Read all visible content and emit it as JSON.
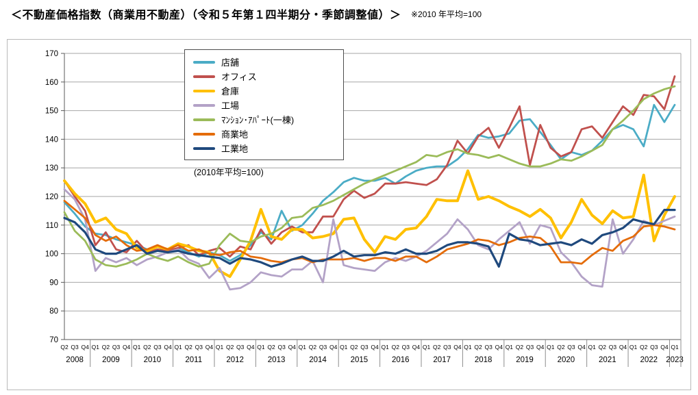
{
  "page": {
    "title": "＜不動産価格指数（商業用不動産）（令和５年第１四半期分・季節調整値）＞",
    "note": "※2010 年平均=100"
  },
  "chart": {
    "legend_note": "(2010年平均=100)"
  },
  "chart_data": {
    "type": "line",
    "title": "不動産価格指数（商業用不動産）",
    "ylabel": "",
    "xlabel": "",
    "ylim": [
      70,
      170
    ],
    "ytick_step": 10,
    "grid": true,
    "legend_position": "top-left-inside",
    "x_axis": {
      "years": [
        {
          "year": "2008",
          "quarters": [
            "Q2",
            "Q3",
            "Q4"
          ]
        },
        {
          "year": "2009",
          "quarters": [
            "Q1",
            "Q2",
            "Q3",
            "Q4"
          ]
        },
        {
          "year": "2010",
          "quarters": [
            "Q1",
            "Q2",
            "Q3",
            "Q4"
          ]
        },
        {
          "year": "2011",
          "quarters": [
            "Q1",
            "Q2",
            "Q3",
            "Q4"
          ]
        },
        {
          "year": "2012",
          "quarters": [
            "Q1",
            "Q2",
            "Q3",
            "Q4"
          ]
        },
        {
          "year": "2013",
          "quarters": [
            "Q1",
            "Q2",
            "Q3",
            "Q4"
          ]
        },
        {
          "year": "2014",
          "quarters": [
            "Q1",
            "Q2",
            "Q3",
            "Q4"
          ]
        },
        {
          "year": "2015",
          "quarters": [
            "Q1",
            "Q2",
            "Q3",
            "Q4"
          ]
        },
        {
          "year": "2016",
          "quarters": [
            "Q1",
            "Q2",
            "Q3",
            "Q4"
          ]
        },
        {
          "year": "2017",
          "quarters": [
            "Q1",
            "Q2",
            "Q3",
            "Q4"
          ]
        },
        {
          "year": "2018",
          "quarters": [
            "Q1",
            "Q2",
            "Q3",
            "Q4"
          ]
        },
        {
          "year": "2019",
          "quarters": [
            "Q1",
            "Q2",
            "Q3",
            "Q4"
          ]
        },
        {
          "year": "2020",
          "quarters": [
            "Q1",
            "Q2",
            "Q3",
            "Q4"
          ]
        },
        {
          "year": "2021",
          "quarters": [
            "Q1",
            "Q2",
            "Q3",
            "Q4"
          ]
        },
        {
          "year": "2022",
          "quarters": [
            "Q1",
            "Q2",
            "Q3",
            "Q4"
          ]
        },
        {
          "year": "2023",
          "quarters": [
            "Q1"
          ]
        }
      ]
    },
    "series": [
      {
        "name": "店舗",
        "color": "#4BACC6",
        "values": [
          118,
          114,
          109.5,
          107,
          106.5,
          105,
          104,
          103,
          101.5,
          102.5,
          101,
          102,
          100.5,
          99,
          100.5,
          99.5,
          97.5,
          99.5,
          103,
          107.5,
          105,
          115,
          108,
          110,
          114,
          118.5,
          121.5,
          125,
          126.5,
          125.5,
          125.5,
          126.5,
          124.5,
          127,
          129,
          130,
          130.5,
          130.5,
          133,
          136.5,
          141.5,
          140.5,
          141,
          142,
          146.5,
          147,
          142.5,
          138,
          133,
          135.5,
          134.5,
          136,
          139.5,
          143.5,
          145,
          143.5,
          137.5,
          152,
          146,
          152
        ]
      },
      {
        "name": "オフィス",
        "color": "#C0504D",
        "values": [
          125.5,
          120,
          115,
          103,
          107.5,
          101.5,
          100.5,
          104.5,
          100.5,
          101.5,
          101,
          102,
          103,
          99.5,
          101,
          102,
          99,
          102.5,
          101.5,
          108.5,
          103.5,
          107.5,
          109.5,
          107.5,
          107.5,
          113,
          113,
          119,
          122,
          119.5,
          121,
          124.5,
          124.5,
          125,
          124.5,
          124,
          126,
          131,
          139.5,
          135,
          141,
          144,
          137,
          144,
          151.5,
          131,
          145,
          137,
          134,
          135.5,
          143.5,
          144.5,
          140.5,
          146,
          151.5,
          148.5,
          155.5,
          155,
          150.5,
          162
        ]
      },
      {
        "name": "倉庫",
        "color": "#FFC000",
        "values": [
          125.5,
          121,
          117.5,
          111,
          112.5,
          108.5,
          107,
          102,
          101,
          102.5,
          101.5,
          103.5,
          102.5,
          101,
          100.5,
          94,
          92,
          98,
          104.5,
          115.5,
          106,
          105,
          108.5,
          108.5,
          105.5,
          106,
          107,
          112,
          112.5,
          105,
          100.5,
          106,
          105,
          108.5,
          109,
          113,
          119,
          118.5,
          118.5,
          129,
          119,
          120,
          118.5,
          116.5,
          115,
          113,
          115.5,
          112.5,
          105.5,
          111,
          119,
          113.5,
          110.5,
          115,
          112.5,
          113,
          127.5,
          104.5,
          113.5,
          120
        ]
      },
      {
        "name": "工場",
        "color": "#B3A2C7",
        "values": [
          122.5,
          119,
          112,
          94,
          98.5,
          97,
          98.5,
          96,
          98,
          99,
          100.5,
          101.5,
          98,
          96.5,
          91.5,
          95,
          87.5,
          88,
          90,
          93.5,
          92.5,
          92,
          94.5,
          94.5,
          97.5,
          90,
          112,
          96,
          95,
          94.5,
          94,
          97,
          98.5,
          97.5,
          99,
          101,
          104,
          107,
          112,
          108.5,
          103,
          101.5,
          105,
          108,
          111,
          103.5,
          110,
          109,
          100.5,
          97,
          92,
          89,
          88.5,
          112,
          100,
          105,
          111.5,
          110,
          111.5,
          113
        ]
      },
      {
        "name": "ﾏﾝｼｮﾝ･ｱﾊﾟｰﾄ(一棟)",
        "color": "#9BBB59",
        "values": [
          114.5,
          108,
          104.5,
          98,
          96,
          95.5,
          96.5,
          98,
          100,
          98.5,
          97.5,
          99,
          97,
          95.5,
          96.5,
          103,
          107,
          104.5,
          104,
          106,
          107,
          109,
          112.5,
          113,
          116,
          117,
          118.5,
          120.5,
          122.5,
          124.5,
          126,
          127.5,
          129,
          130.5,
          132,
          134.5,
          134,
          135.5,
          136.5,
          135,
          134.5,
          133.5,
          134.5,
          133,
          131.5,
          130.5,
          130.5,
          131.5,
          133,
          132.5,
          134,
          136,
          138,
          143.5,
          146.5,
          150,
          154,
          156,
          157.5,
          158.5
        ]
      },
      {
        "name": "商業地",
        "color": "#E46C0A",
        "values": [
          118.5,
          115.5,
          112.5,
          106.5,
          104.5,
          106,
          103,
          101,
          101.5,
          103,
          101.5,
          103,
          101,
          101.5,
          100,
          99.5,
          100.5,
          101,
          99,
          98.5,
          97.5,
          97,
          98,
          98.5,
          97,
          98,
          98,
          98,
          98.5,
          97.5,
          98.5,
          98.5,
          97.5,
          99,
          99,
          97,
          99,
          101.5,
          102.5,
          103.5,
          105,
          104.5,
          103,
          104,
          105.5,
          106,
          105.5,
          102.5,
          97,
          97,
          96.5,
          99.5,
          102,
          101,
          104.5,
          106,
          109.5,
          110,
          109.5,
          108.5
        ]
      },
      {
        "name": "工業地",
        "color": "#1F497D",
        "values": [
          112.5,
          111,
          107.5,
          101.5,
          100,
          100,
          101.5,
          103,
          100,
          101,
          100.5,
          101,
          100,
          99.5,
          99,
          98.5,
          96.5,
          98.5,
          98,
          97,
          95.5,
          96.5,
          98,
          99,
          97.5,
          97.5,
          99,
          101,
          99,
          99.5,
          99.5,
          100.5,
          100,
          101.5,
          100,
          100,
          101,
          103,
          104,
          104,
          103.5,
          102.5,
          95.5,
          107,
          105,
          104.5,
          103,
          103.5,
          104,
          103,
          105,
          103.5,
          106.5,
          107.5,
          109,
          112,
          111,
          110.3,
          115.3,
          115.3
        ]
      }
    ]
  }
}
